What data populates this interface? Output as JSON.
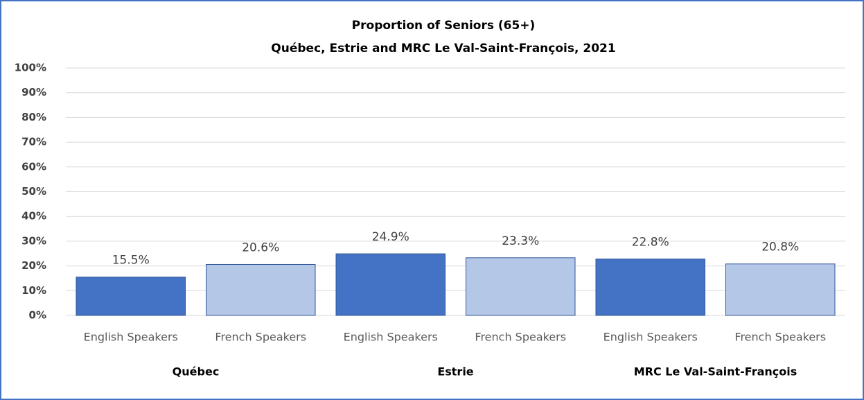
{
  "chart_data": {
    "type": "bar",
    "title": "Proportion of Seniors (65+)",
    "subtitle": "Québec, Estrie and MRC Le Val-Saint-François,  2021",
    "categories": [
      "English Speakers",
      "French Speakers",
      "English Speakers",
      "French Speakers",
      "English Speakers",
      "French Speakers"
    ],
    "groups": [
      "Québec",
      "Estrie",
      "MRC Le Val-Saint-François"
    ],
    "values": [
      15.5,
      20.6,
      24.9,
      23.3,
      22.8,
      20.8
    ],
    "value_labels": [
      "15.5%",
      "20.6%",
      "24.9%",
      "23.3%",
      "22.8%",
      "20.8%"
    ],
    "colors": [
      "#4472c4",
      "#b4c7e7",
      "#4472c4",
      "#b4c7e7",
      "#4472c4",
      "#b4c7e7"
    ],
    "ylim": [
      0,
      100
    ],
    "yticks": [
      {
        "value": 0,
        "label": "0%"
      },
      {
        "value": 10,
        "label": "10%"
      },
      {
        "value": 20,
        "label": "20%"
      },
      {
        "value": 30,
        "label": "30%"
      },
      {
        "value": 40,
        "label": "40%"
      },
      {
        "value": 50,
        "label": "50%"
      },
      {
        "value": 60,
        "label": "60%"
      },
      {
        "value": 70,
        "label": "70%"
      },
      {
        "value": 80,
        "label": "80%"
      },
      {
        "value": 90,
        "label": "90%"
      },
      {
        "value": 100,
        "label": "100%"
      }
    ],
    "grid": true
  }
}
